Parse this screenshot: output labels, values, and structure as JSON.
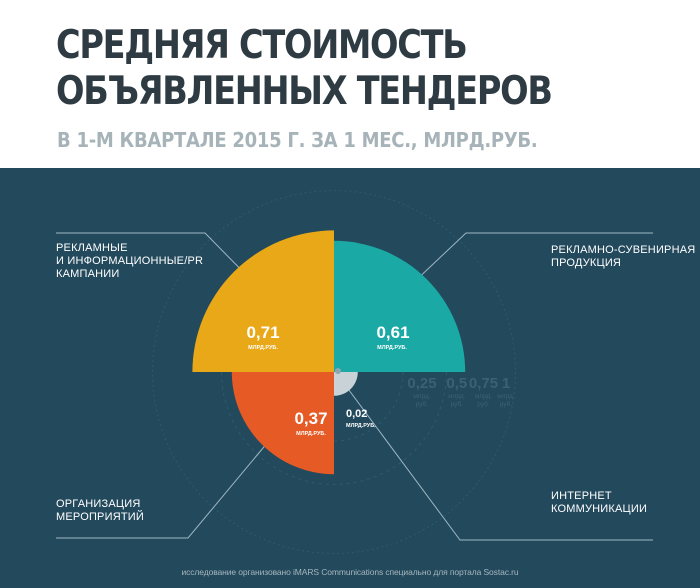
{
  "header": {
    "title_line1": "СРЕДНЯЯ СТОИМОСТЬ",
    "title_line2": "ОБЪЯВЛЕННЫХ ТЕНДЕРОВ",
    "subtitle": "В 1-М КВАРТАЛЕ  2015 Г. ЗА 1 МЕС., МЛРД.РУБ."
  },
  "chart_data": {
    "type": "pie",
    "subtype": "polar-area",
    "unit": "МЛРД.РУБ.",
    "scale_max": 1,
    "slices": [
      {
        "label": "РЕКЛАМНЫЕ\nИ ИНФОРМАЦИОННЫЕ/PR\nКАМПАНИИ",
        "value": 0.71,
        "value_text": "0,71",
        "unit_text": "МЛРД.РУБ.",
        "color": "#e9a817",
        "quadrant": "top-left"
      },
      {
        "label": "РЕКЛАМНО-СУВЕНИРНАЯ\nПРОДУКЦИЯ",
        "value": 0.61,
        "value_text": "0,61",
        "unit_text": "МЛРД.РУБ.",
        "color": "#1aa9a4",
        "quadrant": "top-right"
      },
      {
        "label": "ОРГАНИЗАЦИЯ\nМЕРОПРИЯТИЙ",
        "value": 0.37,
        "value_text": "0,37",
        "unit_text": "МЛРД.РУБ.",
        "color": "#e65a26",
        "quadrant": "bottom-left"
      },
      {
        "label": "ИНТЕРНЕТ\nКОММУНИКАЦИИ",
        "value": 0.02,
        "value_text": "0,02",
        "unit_text": "МЛРД.РУБ.",
        "color": "#c9d2d6",
        "quadrant": "bottom-right"
      }
    ],
    "scale_ticks": [
      {
        "value": 0.25,
        "label": "0,25",
        "unit": "млрд.\nруб."
      },
      {
        "value": 0.5,
        "label": "0,5",
        "unit": "млрд.\nруб."
      },
      {
        "value": 0.75,
        "label": "0,75",
        "unit": "млрд.\nруб."
      },
      {
        "value": 1,
        "label": "1",
        "unit": "млрд.\nруб."
      }
    ]
  },
  "footer": {
    "text": "исследование организовано iMARS Communications специально для портала Sostac.ru"
  }
}
